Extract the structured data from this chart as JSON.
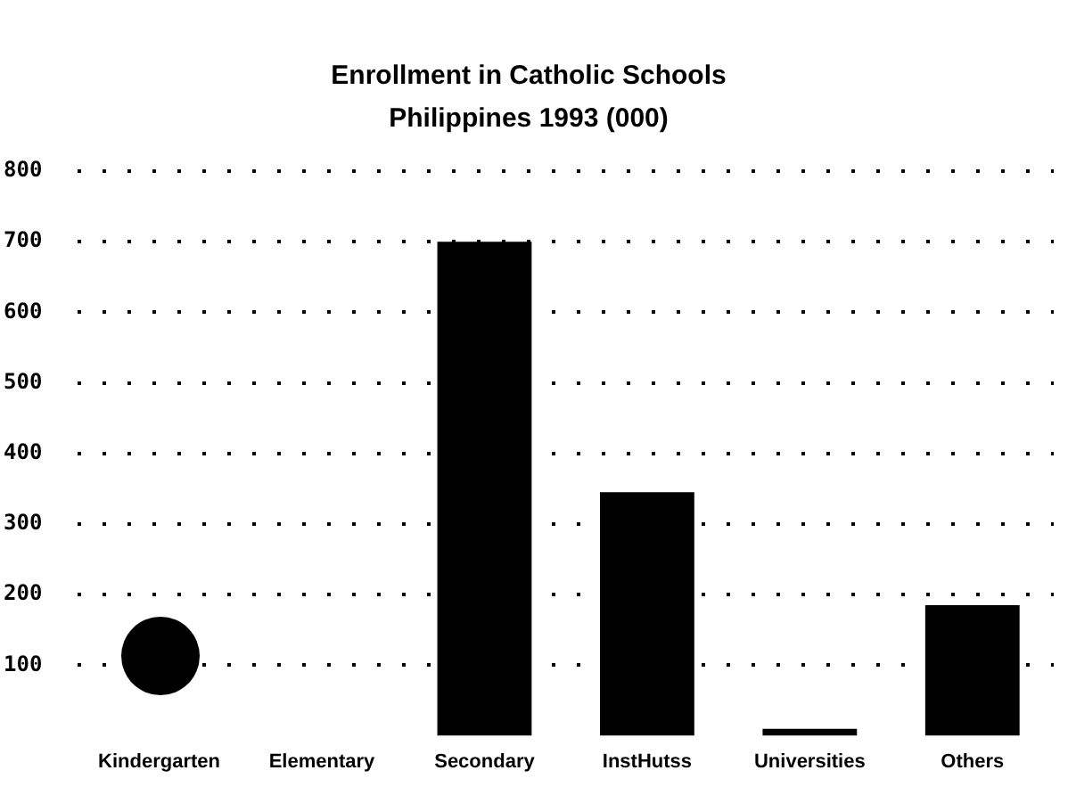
{
  "chart_data": {
    "type": "bar",
    "title": "Enrollment in Catholic Schools",
    "subtitle": "Philippines 1993 (000)",
    "categories": [
      "Kindergarten",
      "Elementary",
      "Secondary",
      "InstHutss",
      "Universities",
      "Others"
    ],
    "values": [
      null,
      null,
      700,
      345,
      10,
      185
    ],
    "color": "#000000",
    "ylim": [
      0,
      800
    ],
    "yticks": [
      100,
      200,
      300,
      400,
      500,
      600,
      700,
      800
    ],
    "grid": "y",
    "legend": false
  }
}
